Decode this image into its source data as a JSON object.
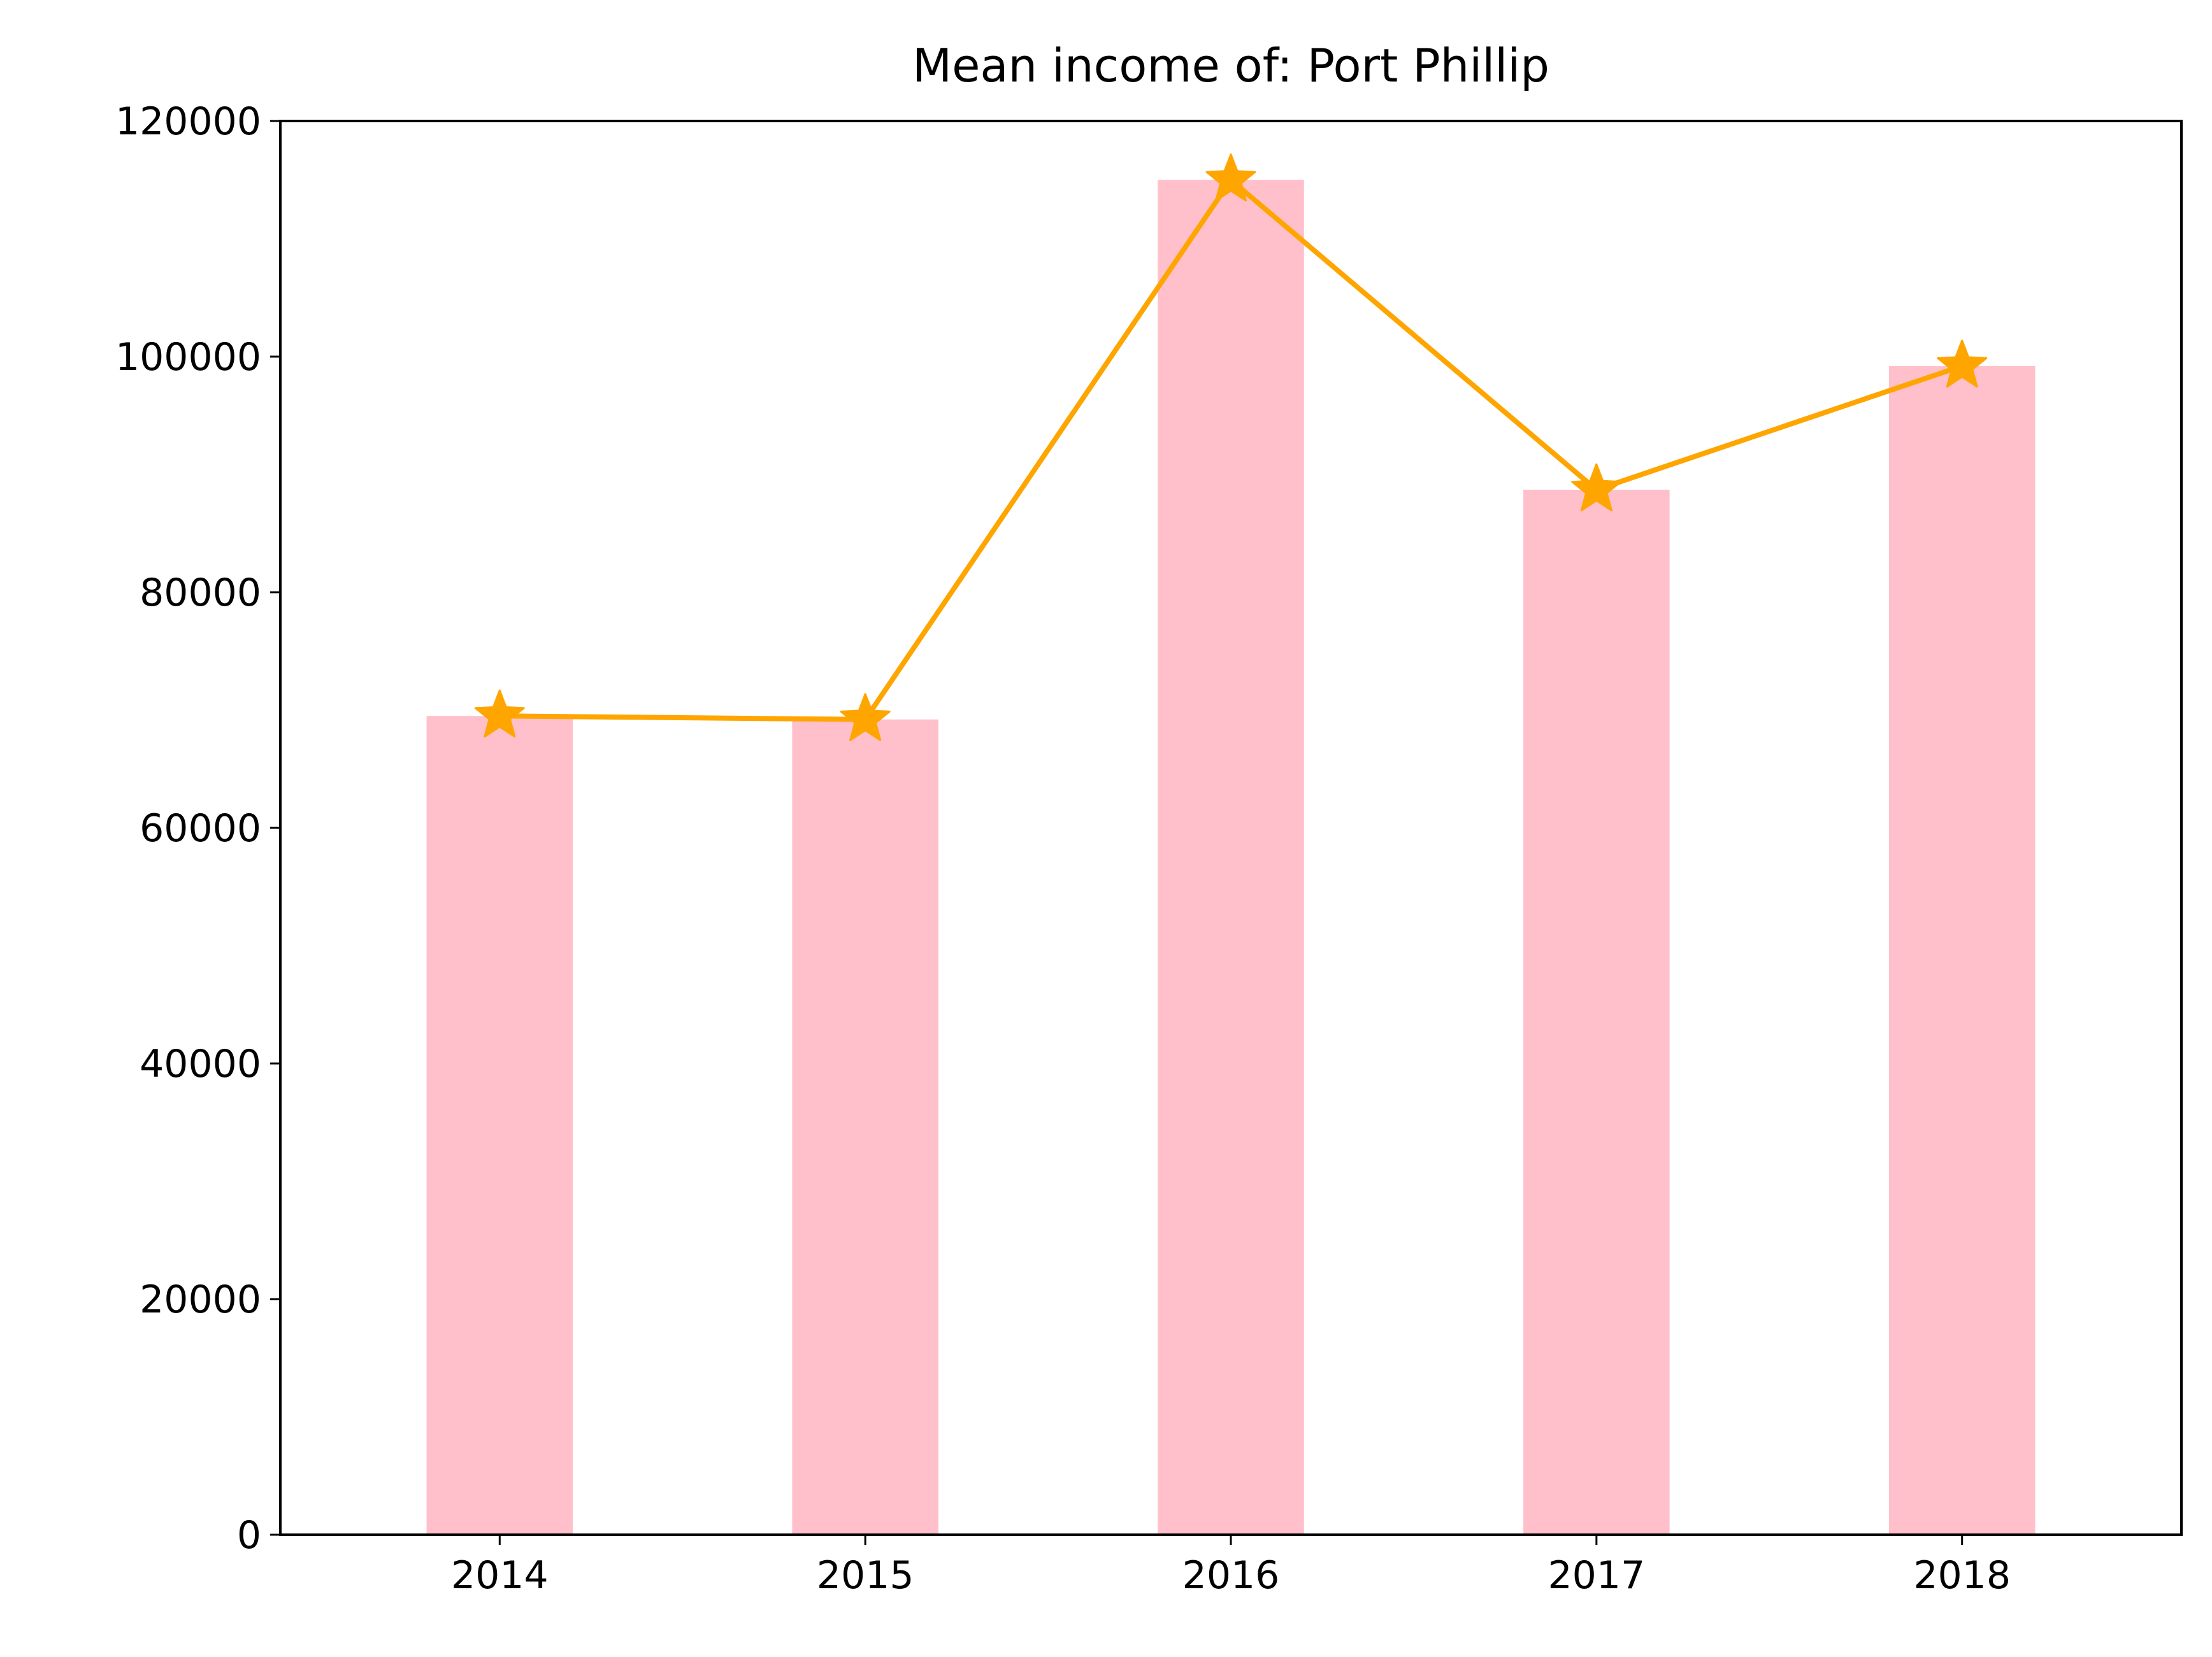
{
  "chart_data": {
    "type": "bar",
    "title": "Mean income of: Port Phillip",
    "xlabel": "",
    "ylabel": "",
    "categories": [
      "2014",
      "2015",
      "2016",
      "2017",
      "2018"
    ],
    "ylim": [
      0,
      120000
    ],
    "yticks": [
      "0",
      "20000",
      "40000",
      "60000",
      "80000",
      "100000",
      "120000"
    ],
    "series": [
      {
        "type": "bar",
        "values": [
          69500,
          69200,
          115000,
          88700,
          99200
        ],
        "color": "#ffc0cb"
      },
      {
        "type": "line",
        "marker": "star",
        "values": [
          69500,
          69200,
          115000,
          88700,
          99200
        ],
        "color": "#ffa500"
      }
    ],
    "grid": false,
    "legend": "none"
  }
}
